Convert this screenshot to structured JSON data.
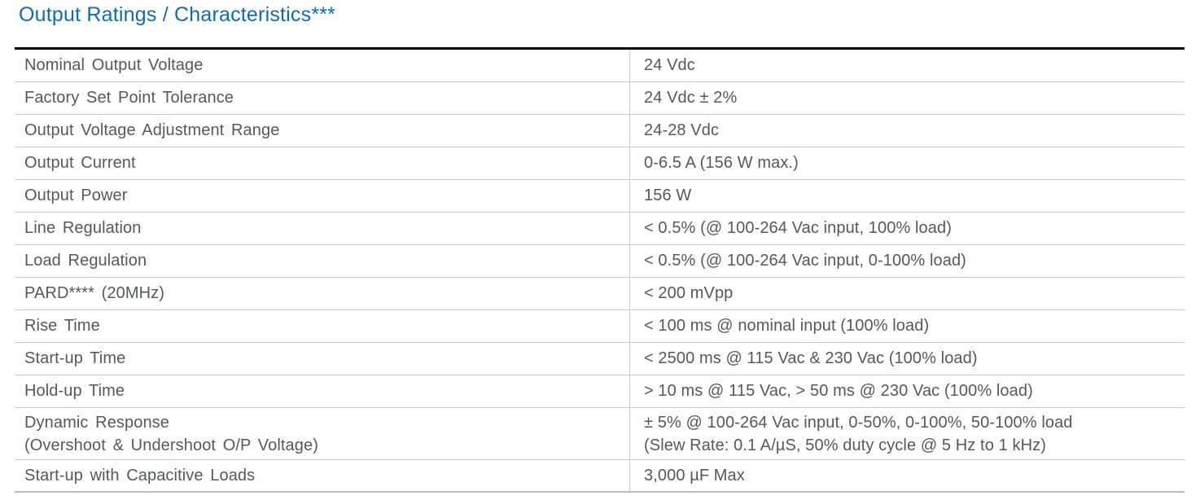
{
  "page": {
    "title": "Output Ratings / Characteristics***"
  },
  "colors": {
    "title_blue": "#0e6cb6",
    "text_gray": "#57585a",
    "rule_gray": "#cbcbcb",
    "top_border_black": "#000000"
  },
  "table": {
    "rows": [
      {
        "param": "Nominal Output Voltage",
        "value": "24 Vdc"
      },
      {
        "param": "Factory Set Point Tolerance",
        "value": "24 Vdc ± 2%"
      },
      {
        "param": "Output Voltage Adjustment Range",
        "value": "24-28 Vdc"
      },
      {
        "param": "Output Current",
        "value": "0-6.5 A (156 W max.)"
      },
      {
        "param": "Output Power",
        "value": "156 W"
      },
      {
        "param": "Line Regulation",
        "value": "< 0.5% (@ 100-264 Vac input, 100% load)"
      },
      {
        "param": "Load Regulation",
        "value": "< 0.5% (@ 100-264 Vac input, 0-100% load)"
      },
      {
        "param": "PARD**** (20MHz)",
        "value": "< 200 mVpp"
      },
      {
        "param": "Rise Time",
        "value": "< 100 ms @ nominal input (100% load)"
      },
      {
        "param": "Start-up Time",
        "value": "< 2500 ms @ 115 Vac & 230 Vac (100% load)"
      },
      {
        "param": "Hold-up Time",
        "value": "> 10 ms @ 115 Vac, > 50 ms @ 230 Vac (100% load)"
      },
      {
        "param": "Dynamic Response",
        "param_line2": "(Overshoot & Undershoot O/P Voltage)",
        "value": "± 5% @ 100-264 Vac input, 0-50%, 0-100%, 50-100% load",
        "value_line2": "(Slew Rate: 0.1 A/µS, 50% duty cycle @ 5 Hz to 1 kHz)"
      },
      {
        "param": "Start-up with Capacitive Loads",
        "value": "3,000 µF Max"
      }
    ]
  }
}
